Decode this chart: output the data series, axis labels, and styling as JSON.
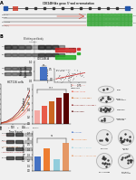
{
  "bg_color": "#f0f0f0",
  "title": "CDC14B-like gene: 5'-end re-annotation",
  "panels": {
    "A": {
      "label": "A"
    },
    "B": {
      "label": "B"
    },
    "C": {
      "label": "C"
    },
    "D": {
      "label": "D"
    },
    "E": {
      "label": "E"
    },
    "F": {
      "label": "F"
    },
    "G": {
      "label": "G"
    },
    "H": {
      "label": "H"
    },
    "I": {
      "label": "I"
    },
    "J": {
      "label": "J"
    },
    "K": {
      "label": "K"
    }
  },
  "genome_track": {
    "line_color": "#333333",
    "exon_blue": "#2255aa",
    "exon_red": "#cc3322",
    "arrow_color": "#cc3322",
    "green_grid_color": "#44aa44"
  },
  "wb_band_colors": [
    "#222222",
    "#444444"
  ],
  "bar_blue": "#4472c4",
  "bar_colors_g": [
    "#f4a9a4",
    "#e85c4a",
    "#cc6622",
    "#8b1a1a",
    "#550000"
  ],
  "bar_colors_j": [
    "#4472c4",
    "#ed7d31",
    "#92cddc",
    "#e59866"
  ],
  "line_colors_f": [
    "#f4a9a4",
    "#e85c4a",
    "#cc6622",
    "#8b1a1a"
  ],
  "gel_red": "#cc2222",
  "gel_green": "#22aa22",
  "scatter_dot": "#555555",
  "scatter_line": "#cc2222",
  "plate_bg": "#d8d8d8",
  "plate_ring": "#aaaaaa",
  "plate_colony": "#333333"
}
